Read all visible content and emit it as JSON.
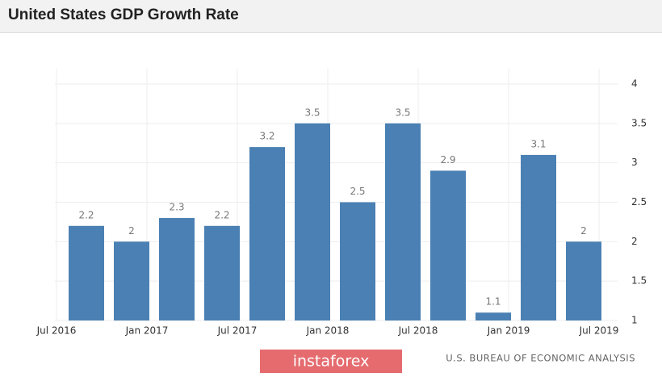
{
  "chart_data": {
    "type": "bar",
    "title": "United States GDP Growth Rate",
    "xticks": [
      "Jul 2016",
      "Jan 2017",
      "Jul 2017",
      "Jan 2018",
      "Jul 2018",
      "Jan 2019",
      "Jul 2019"
    ],
    "values": [
      2.2,
      2,
      2.3,
      2.2,
      3.2,
      3.5,
      2.5,
      3.5,
      2.9,
      1.1,
      3.1,
      2
    ],
    "color": "#4a80b3",
    "ylim": [
      1,
      4
    ],
    "yticks": [
      1,
      1.5,
      2,
      2.5,
      3,
      3.5,
      4
    ],
    "grid": true,
    "source": "U.S. BUREAU OF ECONOMIC ANALYSIS",
    "watermark": "instaforex"
  }
}
